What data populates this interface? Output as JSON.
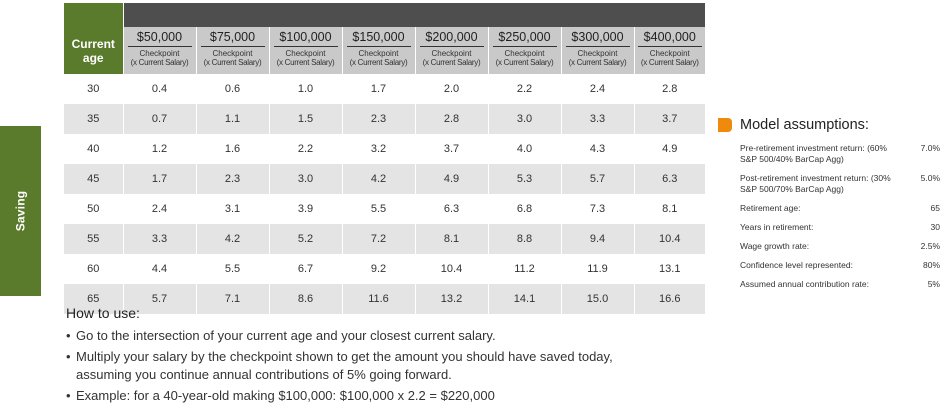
{
  "sidebar": {
    "label": "Saving"
  },
  "table": {
    "age_header_line1": "Current",
    "age_header_line2": "age",
    "columns": [
      {
        "salary": "$50,000",
        "cp1": "Checkpoint",
        "cp2": "(x Current Salary)"
      },
      {
        "salary": "$75,000",
        "cp1": "Checkpoint",
        "cp2": "(x Current Salary)"
      },
      {
        "salary": "$100,000",
        "cp1": "Checkpoint",
        "cp2": "(x Current Salary)"
      },
      {
        "salary": "$150,000",
        "cp1": "Checkpoint",
        "cp2": "(x Current Salary)"
      },
      {
        "salary": "$200,000",
        "cp1": "Checkpoint",
        "cp2": "(x Current Salary)"
      },
      {
        "salary": "$250,000",
        "cp1": "Checkpoint",
        "cp2": "(x Current Salary)"
      },
      {
        "salary": "$300,000",
        "cp1": "Checkpoint",
        "cp2": "(x Current Salary)"
      },
      {
        "salary": "$400,000",
        "cp1": "Checkpoint",
        "cp2": "(x Current Salary)"
      }
    ],
    "rows": [
      {
        "age": "30",
        "values": [
          "0.4",
          "0.6",
          "1.0",
          "1.7",
          "2.0",
          "2.2",
          "2.4",
          "2.8"
        ]
      },
      {
        "age": "35",
        "values": [
          "0.7",
          "1.1",
          "1.5",
          "2.3",
          "2.8",
          "3.0",
          "3.3",
          "3.7"
        ]
      },
      {
        "age": "40",
        "values": [
          "1.2",
          "1.6",
          "2.2",
          "3.2",
          "3.7",
          "4.0",
          "4.3",
          "4.9"
        ]
      },
      {
        "age": "45",
        "values": [
          "1.7",
          "2.3",
          "3.0",
          "4.2",
          "4.9",
          "5.3",
          "5.7",
          "6.3"
        ]
      },
      {
        "age": "50",
        "values": [
          "2.4",
          "3.1",
          "3.9",
          "5.5",
          "6.3",
          "6.8",
          "7.3",
          "8.1"
        ]
      },
      {
        "age": "55",
        "values": [
          "3.3",
          "4.2",
          "5.2",
          "7.2",
          "8.1",
          "8.8",
          "9.4",
          "10.4"
        ]
      },
      {
        "age": "60",
        "values": [
          "4.4",
          "5.5",
          "6.7",
          "9.2",
          "10.4",
          "11.2",
          "11.9",
          "13.1"
        ]
      },
      {
        "age": "65",
        "values": [
          "5.7",
          "7.1",
          "8.6",
          "11.6",
          "13.2",
          "14.1",
          "15.0",
          "16.6"
        ]
      }
    ]
  },
  "howto": {
    "title": "How to use:",
    "items": [
      {
        "line1": "Go to the intersection of your current age and your closest current salary.",
        "line2": ""
      },
      {
        "line1": "Multiply your salary by the checkpoint shown to get the amount you should have saved today,",
        "line2": "assuming you continue annual contributions of 5% going forward."
      },
      {
        "line1": "Example: for a 40-year-old making $100,000: $100,000 x 2.2 = $220,000",
        "line2": ""
      }
    ]
  },
  "assumptions": {
    "title": "Model assumptions:",
    "items": [
      {
        "label": "Pre-retirement investment return: (60% S&P 500/40% BarCap Agg)",
        "value": "7.0%"
      },
      {
        "label": "Post-retirement investment return: (30% S&P 500/70% BarCap Agg)",
        "value": "5.0%"
      },
      {
        "label": "Retirement age:",
        "value": "65"
      },
      {
        "label": "Years in retirement:",
        "value": "30"
      },
      {
        "label": "Wage growth rate:",
        "value": "2.5%"
      },
      {
        "label": "Confidence level represented:",
        "value": "80%"
      },
      {
        "label": "Assumed annual contribution rate:",
        "value": "5%"
      }
    ]
  },
  "colors": {
    "green": "#5a7b2c",
    "dark_band": "#4e4e4e",
    "header_gray": "#c9c9c9",
    "row_gray": "#e4e4e4",
    "orange": "#f08a0d"
  }
}
